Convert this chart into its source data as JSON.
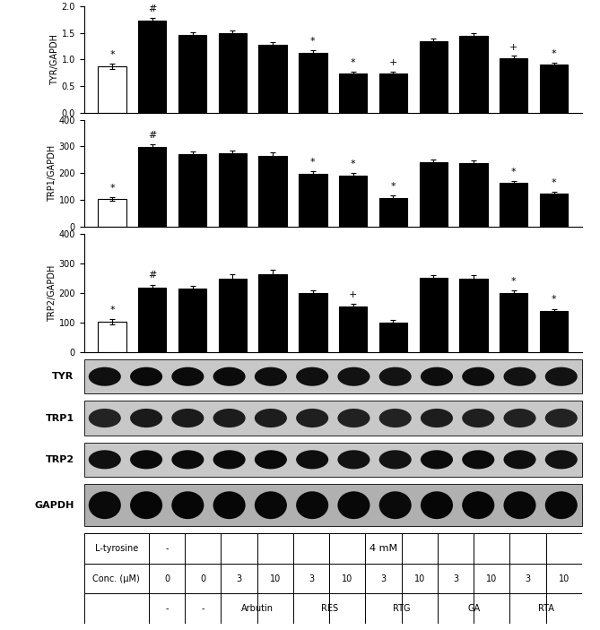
{
  "tyr_values": [
    0.87,
    1.73,
    1.47,
    1.5,
    1.27,
    1.13,
    0.73,
    0.74,
    1.35,
    1.44,
    1.03,
    0.9
  ],
  "tyr_errors": [
    0.05,
    0.06,
    0.05,
    0.05,
    0.05,
    0.05,
    0.04,
    0.04,
    0.04,
    0.05,
    0.04,
    0.04
  ],
  "tyr_ylim": [
    0,
    2.0
  ],
  "tyr_yticks": [
    0,
    0.5,
    1.0,
    1.5,
    2.0
  ],
  "tyr_ylabel": "TYR/GAPDH",
  "trp1_values": [
    103,
    298,
    270,
    275,
    265,
    198,
    190,
    108,
    242,
    238,
    163,
    122
  ],
  "trp1_errors": [
    8,
    12,
    10,
    10,
    12,
    10,
    10,
    8,
    8,
    10,
    8,
    8
  ],
  "trp1_ylim": [
    0,
    400
  ],
  "trp1_yticks": [
    0,
    100,
    200,
    300,
    400
  ],
  "trp1_ylabel": "TRP1/GAPDH",
  "trp2_values": [
    103,
    218,
    215,
    248,
    262,
    198,
    153,
    100,
    250,
    248,
    198,
    138
  ],
  "trp2_errors": [
    8,
    10,
    10,
    15,
    15,
    12,
    10,
    8,
    10,
    12,
    10,
    8
  ],
  "trp2_ylim": [
    0,
    400
  ],
  "trp2_yticks": [
    0,
    100,
    200,
    300,
    400
  ],
  "trp2_ylabel": "TRP2/GAPDH",
  "bar_colors": [
    "white",
    "black",
    "black",
    "black",
    "black",
    "black",
    "black",
    "black",
    "black",
    "black",
    "black",
    "black"
  ],
  "bar_edge_colors": [
    "black",
    "black",
    "black",
    "black",
    "black",
    "black",
    "black",
    "black",
    "black",
    "black",
    "black",
    "black"
  ],
  "annotations_tyr": [
    "*",
    "#",
    "",
    "",
    "",
    "*",
    "*",
    "+",
    "",
    "",
    "+",
    "*"
  ],
  "annotations_trp1": [
    "*",
    "#",
    "",
    "",
    "",
    "*",
    "*",
    "*",
    "",
    "",
    "*",
    "*"
  ],
  "annotations_trp2": [
    "*",
    "#",
    "",
    "",
    "",
    "",
    "+",
    "",
    "",
    "",
    "*",
    "*"
  ],
  "tyr_bands": [
    0.75,
    0.85,
    0.82,
    0.82,
    0.78,
    0.75,
    0.72,
    0.7,
    0.8,
    0.8,
    0.72,
    0.72
  ],
  "trp1_bands": [
    0.45,
    0.6,
    0.58,
    0.56,
    0.54,
    0.52,
    0.48,
    0.46,
    0.55,
    0.52,
    0.48,
    0.46
  ],
  "trp2_bands": [
    0.75,
    0.85,
    0.82,
    0.85,
    0.85,
    0.78,
    0.72,
    0.7,
    0.82,
    0.82,
    0.78,
    0.72
  ],
  "gapdh_bands": [
    0.85,
    0.9,
    0.9,
    0.9,
    0.88,
    0.88,
    0.88,
    0.85,
    0.9,
    0.9,
    0.88,
    0.88
  ],
  "compound_groups": [
    "Arbutin",
    "RES",
    "RTG",
    "GA",
    "RTA"
  ],
  "conc_vals": [
    "0",
    "0",
    "3",
    "10",
    "3",
    "10",
    "3",
    "10",
    "3",
    "10",
    "3",
    "10"
  ],
  "background_color": "#ffffff",
  "bar_width": 0.7,
  "figsize": [
    6.69,
    7.03
  ],
  "dpi": 100
}
